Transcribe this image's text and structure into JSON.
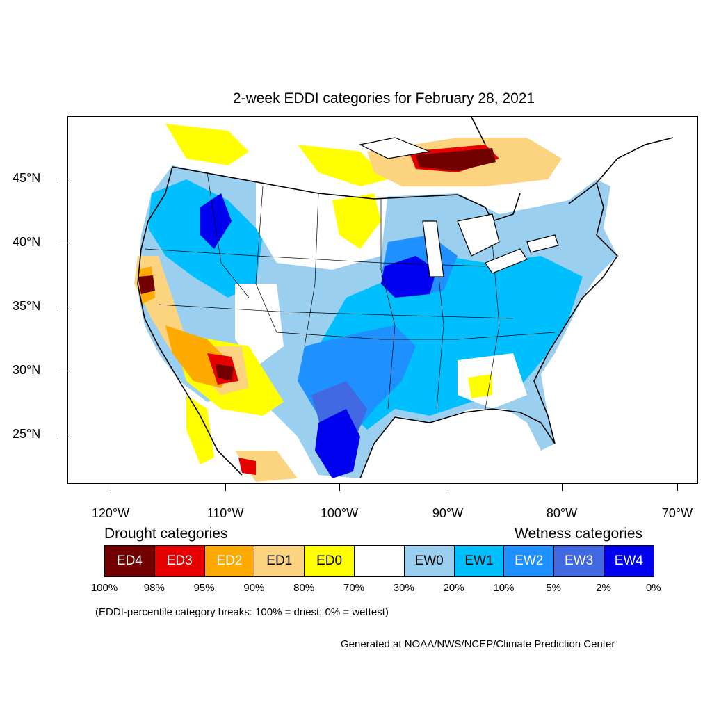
{
  "title": "2-week EDDI categories for February 28, 2021",
  "latitude_labels": [
    "45°N",
    "40°N",
    "35°N",
    "30°N",
    "25°N"
  ],
  "longitude_labels": [
    "120°W",
    "110°W",
    "100°W",
    "90°W",
    "80°W",
    "70°W"
  ],
  "legend": {
    "drought_heading": "Drought categories",
    "wetness_heading": "Wetness categories",
    "categories": [
      {
        "label": "ED4",
        "color": "#730000",
        "text_color": "#ffffff"
      },
      {
        "label": "ED3",
        "color": "#e60000",
        "text_color": "#ffffff"
      },
      {
        "label": "ED2",
        "color": "#ffaa00",
        "text_color": "#ffffff"
      },
      {
        "label": "ED1",
        "color": "#fcd37f",
        "text_color": "#000000"
      },
      {
        "label": "ED0",
        "color": "#ffff00",
        "text_color": "#000000"
      },
      {
        "label": "",
        "color": "#ffffff",
        "text_color": "#000000"
      },
      {
        "label": "EW0",
        "color": "#9bcff0",
        "text_color": "#000000"
      },
      {
        "label": "EW1",
        "color": "#00bfff",
        "text_color": "#000000"
      },
      {
        "label": "EW2",
        "color": "#1e90ff",
        "text_color": "#ffffff"
      },
      {
        "label": "EW3",
        "color": "#4169e1",
        "text_color": "#ffffff"
      },
      {
        "label": "EW4",
        "color": "#0000f0",
        "text_color": "#ffffff"
      }
    ],
    "percent_breaks": [
      "100%",
      "98%",
      "95%",
      "90%",
      "80%",
      "70%",
      "30%",
      "20%",
      "10%",
      "5%",
      "2%",
      "0%"
    ]
  },
  "note": "(EDDI-percentile category breaks: 100% = driest; 0% = wettest)",
  "credit": "Generated at NOAA/NWS/NCEP/Climate Prediction Center"
}
